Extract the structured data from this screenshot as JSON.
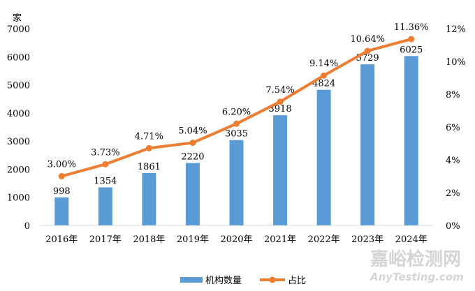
{
  "chart_data": {
    "type": "bar+line",
    "categories": [
      "2016年",
      "2017年",
      "2018年",
      "2019年",
      "2020年",
      "2021年",
      "2022年",
      "2023年",
      "2024年"
    ],
    "series": [
      {
        "name": "机构数量",
        "type": "bar",
        "axis": "left",
        "color": "#5b9bd5",
        "values": [
          998,
          1354,
          1861,
          2220,
          3035,
          3918,
          4824,
          5729,
          6025
        ]
      },
      {
        "name": "占比",
        "type": "line",
        "axis": "right",
        "color": "#ed7d31",
        "values": [
          3.0,
          3.73,
          4.71,
          5.04,
          6.2,
          7.54,
          9.14,
          10.64,
          11.36
        ],
        "labels": [
          "3.00%",
          "3.73%",
          "4.71%",
          "5.04%",
          "6.20%",
          "7.54%",
          "9.14%",
          "10.64%",
          "11.36%"
        ]
      }
    ],
    "ylabel": "家",
    "ylim": [
      0,
      7000
    ],
    "yticks": [
      "0",
      "1000",
      "2000",
      "3000",
      "4000",
      "5000",
      "6000",
      "7000"
    ],
    "y2lim": [
      0,
      12
    ],
    "y2ticks": [
      "0%",
      "2%",
      "4%",
      "6%",
      "8%",
      "10%",
      "12%"
    ],
    "grid": false,
    "legend": "bottom"
  },
  "watermark": {
    "line1": "嘉峪检测网",
    "line2": "AnyTesting.com"
  }
}
